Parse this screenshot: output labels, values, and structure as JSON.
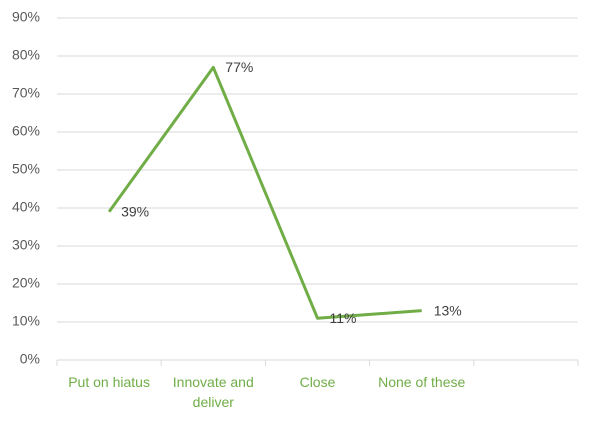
{
  "chart_data": {
    "type": "line",
    "categories": [
      "Put on hiatus",
      "Innovate and deliver",
      "Close",
      "None of these",
      null
    ],
    "values": [
      39,
      77,
      11,
      13,
      null
    ],
    "value_labels": [
      "39%",
      "77%",
      "11%",
      "13%",
      null
    ],
    "color": "#70ad47",
    "ylim": [
      0,
      90
    ],
    "yticks": [
      {
        "value": 0,
        "label": "0%"
      },
      {
        "value": 10,
        "label": "10%"
      },
      {
        "value": 20,
        "label": "20%"
      },
      {
        "value": 30,
        "label": "30%"
      },
      {
        "value": 40,
        "label": "40%"
      },
      {
        "value": 50,
        "label": "50%"
      },
      {
        "value": 60,
        "label": "60%"
      },
      {
        "value": 70,
        "label": "70%"
      },
      {
        "value": 80,
        "label": "80%"
      },
      {
        "value": 90,
        "label": "90%"
      }
    ],
    "grid": true
  }
}
